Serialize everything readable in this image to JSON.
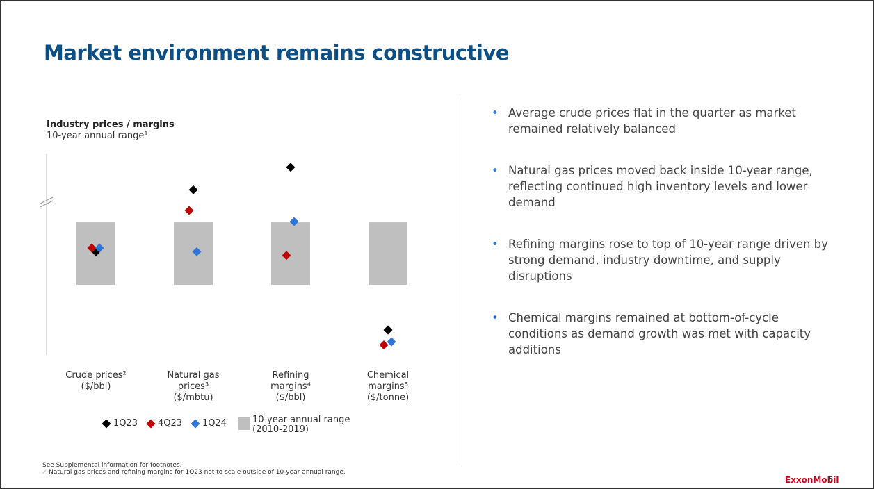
{
  "header": {
    "title": "Market environment remains constructive"
  },
  "chart_data": {
    "type": "range-dot",
    "title": "Industry prices / margins",
    "subtitle": "10-year annual range¹",
    "categories": [
      "Crude prices²\n($/bbl)",
      "Natural gas\nprices³\n($/mbtu)",
      "Refining\nmargins⁴\n($/bbl)",
      "Chemical\nmargins⁵\n($/tonne)"
    ],
    "ylim": [
      -112,
      210
    ],
    "range": {
      "name": "10-year annual range\n(2010-2019)",
      "color": "#bfbfbf",
      "low": [
        0,
        0,
        0,
        0
      ],
      "high": [
        100,
        100,
        100,
        100
      ]
    },
    "series": [
      {
        "name": "1Q23",
        "color": "#000000",
        "values": [
          53,
          152,
          188,
          -72
        ]
      },
      {
        "name": "4Q23",
        "color": "#c00000",
        "values": [
          59,
          119,
          47,
          -96
        ]
      },
      {
        "name": "1Q24",
        "color": "#2e75d6",
        "values": [
          59,
          53,
          101,
          -91
        ]
      }
    ]
  },
  "bullets": [
    "Average crude prices flat in the quarter as market remained relatively balanced",
    "Natural gas prices moved back inside 10-year range, reflecting continued high inventory levels and lower demand",
    "Refining margins rose to top of 10-year range driven by strong demand, industry downtime, and supply disruptions",
    "Chemical margins remained at bottom-of-cycle conditions as demand growth was met with capacity additions"
  ],
  "footer": {
    "notes": [
      "See Supplemental information for footnotes.",
      "Natural gas prices and refining margins for 1Q23 not to scale outside of 10-year annual range."
    ],
    "logo": "ExxonMobil",
    "page": "5"
  }
}
